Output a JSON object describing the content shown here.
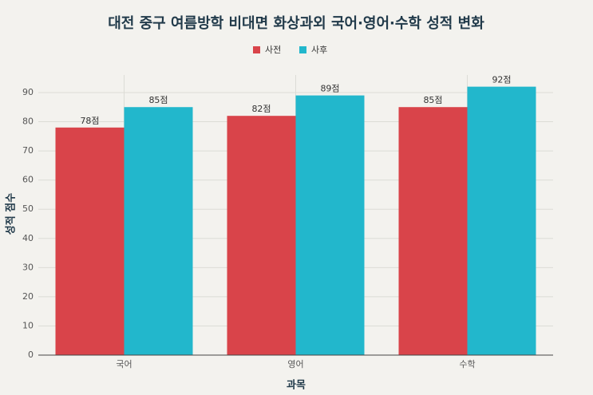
{
  "chart_data": {
    "type": "bar",
    "title": "대전 중구 여름방학 비대면 화상과외 국어·영어·수학 성적 변화",
    "x_label": "과목",
    "y_label": "성적 점수",
    "categories": [
      "국어",
      "영어",
      "수학"
    ],
    "series": [
      {
        "name": "사전",
        "color": "#d9444a",
        "values": [
          78,
          82,
          85
        ],
        "value_labels": [
          "78점",
          "82점",
          "85점"
        ]
      },
      {
        "name": "사후",
        "color": "#22b7cc",
        "values": [
          85,
          89,
          92
        ],
        "value_labels": [
          "85점",
          "89점",
          "92점"
        ]
      }
    ],
    "ylim": [
      0,
      96
    ],
    "yticks": [
      0,
      10,
      20,
      30,
      40,
      50,
      60,
      70,
      80,
      90
    ],
    "grid": true,
    "legend": "top"
  }
}
